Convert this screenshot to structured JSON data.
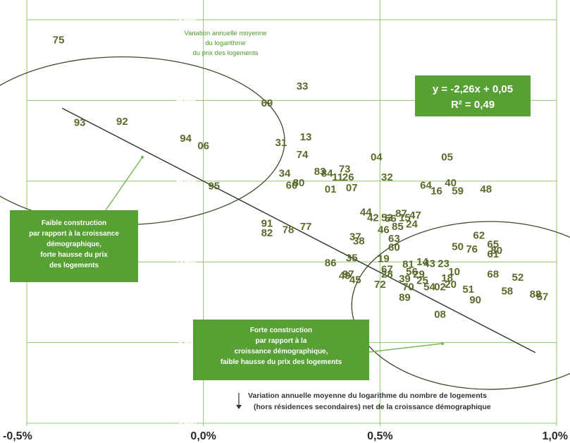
{
  "chart_data": {
    "type": "scatter",
    "y_title_lines": [
      "Variation annuelle moyenne",
      "du logarithme",
      "du prix des logements"
    ],
    "x_title_lines": [
      "Variation annuelle moyenne du logarithme du nombre de logements",
      "(hors résidences secondaires) net de la croissance démographique"
    ],
    "xlim": [
      -0.005,
      0.01
    ],
    "ylim": [
      0.02,
      0.07
    ],
    "x_ticks": [
      {
        "value": -0.005,
        "label": "-0,5%"
      },
      {
        "value": 0.0,
        "label": "0,0%"
      },
      {
        "value": 0.005,
        "label": "0,5%"
      },
      {
        "value": 0.01,
        "label": "1,0%"
      }
    ],
    "y_ticks": [
      {
        "value": 0.02,
        "label": "2%"
      },
      {
        "value": 0.03,
        "label": "3%"
      },
      {
        "value": 0.04,
        "label": "4%"
      },
      {
        "value": 0.05,
        "label": "5%"
      },
      {
        "value": 0.06,
        "label": "6%"
      },
      {
        "value": 0.07,
        "label": "7%"
      }
    ],
    "regression": {
      "slope": -2.26,
      "intercept": 0.05,
      "equation": "y = -2,26x + 0,05",
      "r2": "R² = 0,49",
      "x_range": [
        -0.004,
        0.0094
      ]
    },
    "groups": [
      {
        "label_lines": [
          "Faible construction",
          "par rapport à la croissance",
          "démographique,",
          "forte hausse du prix",
          "des logements"
        ],
        "center": [
          -0.0023,
          0.055
        ],
        "radius_x": 0.0046,
        "radius_y": 0.0104
      },
      {
        "label_lines": [
          "Forte construction",
          "par rapport à la",
          "croissance démographique,",
          "faible hausse du prix des logements"
        ],
        "center": [
          0.0081,
          0.0346
        ],
        "radius_x": 0.0039,
        "radius_y": 0.0104
      }
    ],
    "points": [
      {
        "label": "75",
        "x": -0.0041,
        "y": 0.0675
      },
      {
        "label": "93",
        "x": -0.0035,
        "y": 0.0573
      },
      {
        "label": "92",
        "x": -0.0023,
        "y": 0.0574
      },
      {
        "label": "94",
        "x": -0.0005,
        "y": 0.0553
      },
      {
        "label": "06",
        "x": 0.0,
        "y": 0.0544
      },
      {
        "label": "95",
        "x": 0.0003,
        "y": 0.0494
      },
      {
        "label": "33",
        "x": 0.0028,
        "y": 0.0618
      },
      {
        "label": "69",
        "x": 0.0018,
        "y": 0.0597
      },
      {
        "label": "31",
        "x": 0.0022,
        "y": 0.0548
      },
      {
        "label": "13",
        "x": 0.0029,
        "y": 0.0555
      },
      {
        "label": "74",
        "x": 0.0028,
        "y": 0.0533
      },
      {
        "label": "04",
        "x": 0.0049,
        "y": 0.053
      },
      {
        "label": "05",
        "x": 0.0069,
        "y": 0.053
      },
      {
        "label": "34",
        "x": 0.0023,
        "y": 0.051
      },
      {
        "label": "80",
        "x": 0.0027,
        "y": 0.0498
      },
      {
        "label": "60",
        "x": 0.0025,
        "y": 0.0495
      },
      {
        "label": "83",
        "x": 0.0033,
        "y": 0.0512
      },
      {
        "label": "84",
        "x": 0.0035,
        "y": 0.051
      },
      {
        "label": "73",
        "x": 0.004,
        "y": 0.0515
      },
      {
        "label": "11",
        "x": 0.0038,
        "y": 0.0505
      },
      {
        "label": "26",
        "x": 0.0041,
        "y": 0.0505
      },
      {
        "label": "01",
        "x": 0.0036,
        "y": 0.049
      },
      {
        "label": "07",
        "x": 0.0042,
        "y": 0.0492
      },
      {
        "label": "32",
        "x": 0.0052,
        "y": 0.0505
      },
      {
        "label": "64",
        "x": 0.0063,
        "y": 0.0495
      },
      {
        "label": "40",
        "x": 0.007,
        "y": 0.0498
      },
      {
        "label": "16",
        "x": 0.0066,
        "y": 0.0488
      },
      {
        "label": "59",
        "x": 0.0072,
        "y": 0.0488
      },
      {
        "label": "48",
        "x": 0.008,
        "y": 0.049
      },
      {
        "label": "44",
        "x": 0.0046,
        "y": 0.0462
      },
      {
        "label": "42",
        "x": 0.0048,
        "y": 0.0455
      },
      {
        "label": "53",
        "x": 0.0052,
        "y": 0.0455
      },
      {
        "label": "56",
        "x": 0.0053,
        "y": 0.0454
      },
      {
        "label": "87",
        "x": 0.0056,
        "y": 0.046
      },
      {
        "label": "15",
        "x": 0.0057,
        "y": 0.0455
      },
      {
        "label": "47",
        "x": 0.006,
        "y": 0.0458
      },
      {
        "label": "24",
        "x": 0.0059,
        "y": 0.0447
      },
      {
        "label": "85",
        "x": 0.0055,
        "y": 0.0444
      },
      {
        "label": "46",
        "x": 0.0051,
        "y": 0.044
      },
      {
        "label": "91",
        "x": 0.0018,
        "y": 0.0448
      },
      {
        "label": "82",
        "x": 0.0018,
        "y": 0.0436
      },
      {
        "label": "78",
        "x": 0.0024,
        "y": 0.044
      },
      {
        "label": "77",
        "x": 0.0029,
        "y": 0.0444
      },
      {
        "label": "37",
        "x": 0.0043,
        "y": 0.0431
      },
      {
        "label": "38",
        "x": 0.0044,
        "y": 0.0426
      },
      {
        "label": "63",
        "x": 0.0054,
        "y": 0.0429
      },
      {
        "label": "60",
        "x": 0.0054,
        "y": 0.0418
      },
      {
        "label": "62",
        "x": 0.0078,
        "y": 0.0433
      },
      {
        "label": "50",
        "x": 0.0072,
        "y": 0.0419
      },
      {
        "label": "76",
        "x": 0.0076,
        "y": 0.0416
      },
      {
        "label": "65",
        "x": 0.0082,
        "y": 0.0422
      },
      {
        "label": "80",
        "x": 0.0083,
        "y": 0.0414
      },
      {
        "label": "61",
        "x": 0.0082,
        "y": 0.041
      },
      {
        "label": "35",
        "x": 0.0042,
        "y": 0.0405
      },
      {
        "label": "86",
        "x": 0.0036,
        "y": 0.0399
      },
      {
        "label": "19",
        "x": 0.0051,
        "y": 0.0404
      },
      {
        "label": "81",
        "x": 0.0058,
        "y": 0.0397
      },
      {
        "label": "14",
        "x": 0.0062,
        "y": 0.04
      },
      {
        "label": "43",
        "x": 0.0064,
        "y": 0.0398
      },
      {
        "label": "23",
        "x": 0.0068,
        "y": 0.0398
      },
      {
        "label": "67",
        "x": 0.0052,
        "y": 0.0391
      },
      {
        "label": "28",
        "x": 0.0052,
        "y": 0.0385
      },
      {
        "label": "56",
        "x": 0.0059,
        "y": 0.0388
      },
      {
        "label": "29",
        "x": 0.0061,
        "y": 0.0385
      },
      {
        "label": "10",
        "x": 0.0071,
        "y": 0.0388
      },
      {
        "label": "68",
        "x": 0.0082,
        "y": 0.0385
      },
      {
        "label": "52",
        "x": 0.0089,
        "y": 0.0381
      },
      {
        "label": "49",
        "x": 0.004,
        "y": 0.0383
      },
      {
        "label": "97",
        "x": 0.0041,
        "y": 0.0385
      },
      {
        "label": "45",
        "x": 0.0043,
        "y": 0.0378
      },
      {
        "label": "39",
        "x": 0.0057,
        "y": 0.0379
      },
      {
        "label": "25",
        "x": 0.0062,
        "y": 0.0377
      },
      {
        "label": "18",
        "x": 0.0069,
        "y": 0.038
      },
      {
        "label": "72",
        "x": 0.005,
        "y": 0.0372
      },
      {
        "label": "70",
        "x": 0.0058,
        "y": 0.0369
      },
      {
        "label": "54",
        "x": 0.0064,
        "y": 0.0369
      },
      {
        "label": "02",
        "x": 0.0067,
        "y": 0.0369
      },
      {
        "label": "20",
        "x": 0.007,
        "y": 0.0372
      },
      {
        "label": "51",
        "x": 0.0075,
        "y": 0.0366
      },
      {
        "label": "89",
        "x": 0.0057,
        "y": 0.0356
      },
      {
        "label": "90",
        "x": 0.0077,
        "y": 0.0353
      },
      {
        "label": "58",
        "x": 0.0086,
        "y": 0.0364
      },
      {
        "label": "88",
        "x": 0.0094,
        "y": 0.036
      },
      {
        "label": "57",
        "x": 0.0096,
        "y": 0.0357
      },
      {
        "label": "08",
        "x": 0.0067,
        "y": 0.0335
      }
    ]
  }
}
